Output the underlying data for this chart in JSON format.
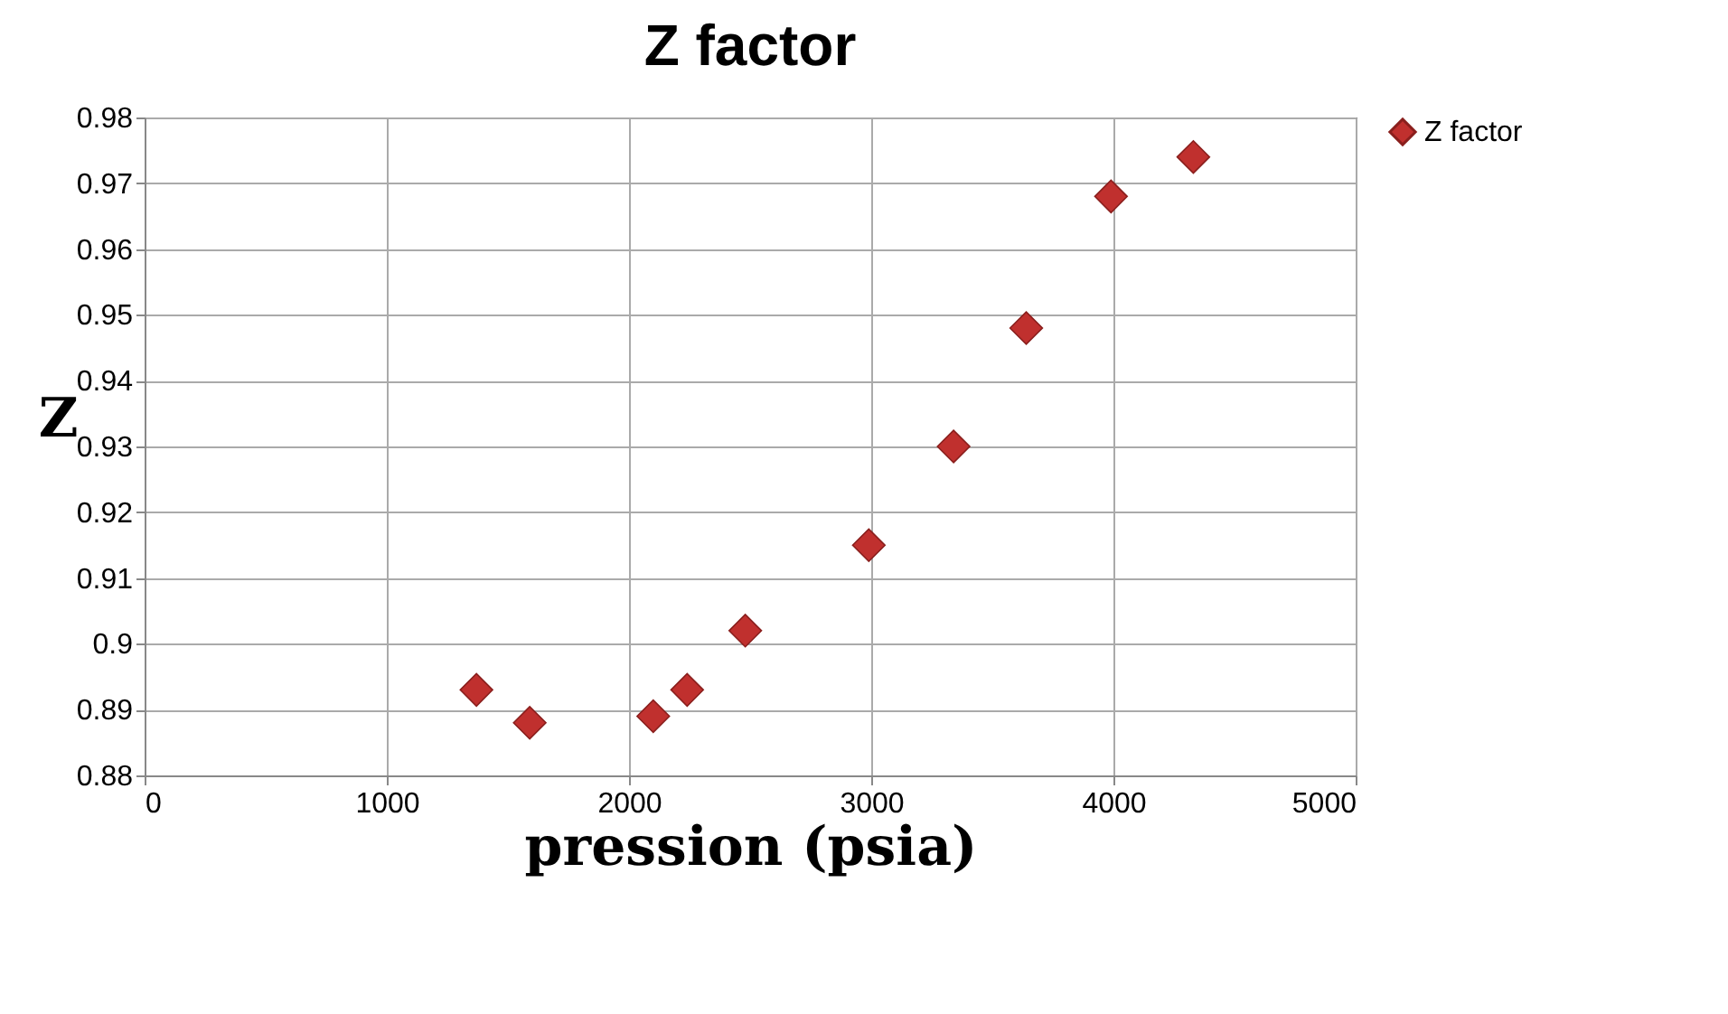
{
  "chart_data": {
    "type": "scatter",
    "title": "Z factor",
    "xlabel": "pression (psia)",
    "ylabel": "Z",
    "x": [
      1370,
      1590,
      2100,
      2240,
      2480,
      2990,
      3340,
      3640,
      3990,
      4330
    ],
    "series": [
      {
        "name": "Z factor",
        "color": "#c0302e",
        "values": [
          0.893,
          0.888,
          0.889,
          0.893,
          0.902,
          0.915,
          0.93,
          0.948,
          0.968,
          0.974
        ]
      }
    ],
    "xlim": [
      0,
      5000
    ],
    "xticks": [
      0,
      1000,
      2000,
      3000,
      4000,
      5000
    ],
    "ylim": [
      0.88,
      0.98
    ],
    "yticks": [
      0.88,
      0.89,
      0.9,
      0.91,
      0.92,
      0.93,
      0.94,
      0.95,
      0.96,
      0.97,
      0.98
    ],
    "grid": true,
    "legend": "right",
    "marker": "diamond"
  }
}
